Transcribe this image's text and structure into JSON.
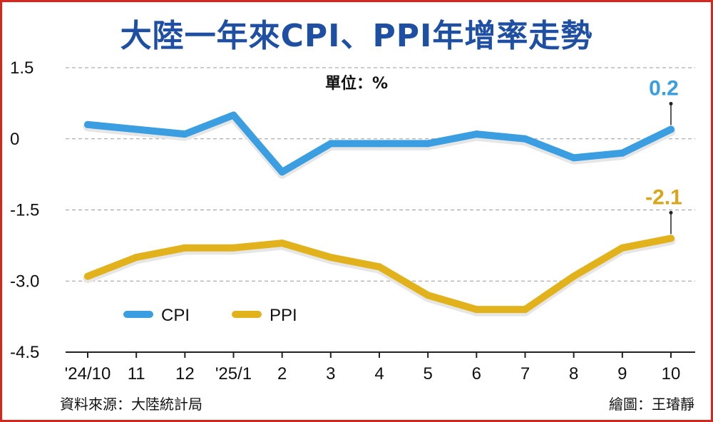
{
  "title": "大陸一年來CPI、PPI年增率走勢",
  "unit": "單位：%",
  "source": "資料來源：大陸統計局",
  "credit": "繪圖：王璿靜",
  "colors": {
    "cpi": "#3a9ee0",
    "ppi": "#e2b21c",
    "cpi_label": "#3a9ee0",
    "ppi_label": "#d9a51a"
  },
  "chart_data": {
    "type": "line",
    "title": "大陸一年來CPI、PPI年增率走勢",
    "xlabel": "",
    "ylabel": "",
    "categories": [
      "'24/10",
      "11",
      "12",
      "'25/1",
      "2",
      "3",
      "4",
      "5",
      "6",
      "7",
      "8",
      "9",
      "10"
    ],
    "y_ticks": [
      "1.5",
      "0",
      "-1.5",
      "-3.0",
      "-4.5"
    ],
    "y_tick_values": [
      1.5,
      0,
      -1.5,
      -3.0,
      -4.5
    ],
    "ylim": [
      -4.5,
      1.5
    ],
    "grid": true,
    "legend": "bottom-left",
    "series": [
      {
        "name": "CPI",
        "values": [
          0.3,
          0.2,
          0.1,
          0.5,
          -0.7,
          -0.1,
          -0.1,
          -0.1,
          0.1,
          0.0,
          -0.4,
          -0.3,
          0.2
        ],
        "end_label": "0.2"
      },
      {
        "name": "PPI",
        "values": [
          -2.9,
          -2.5,
          -2.3,
          -2.3,
          -2.2,
          -2.5,
          -2.7,
          -3.3,
          -3.6,
          -3.6,
          -2.9,
          -2.3,
          -2.1
        ],
        "end_label": "-2.1"
      }
    ]
  }
}
